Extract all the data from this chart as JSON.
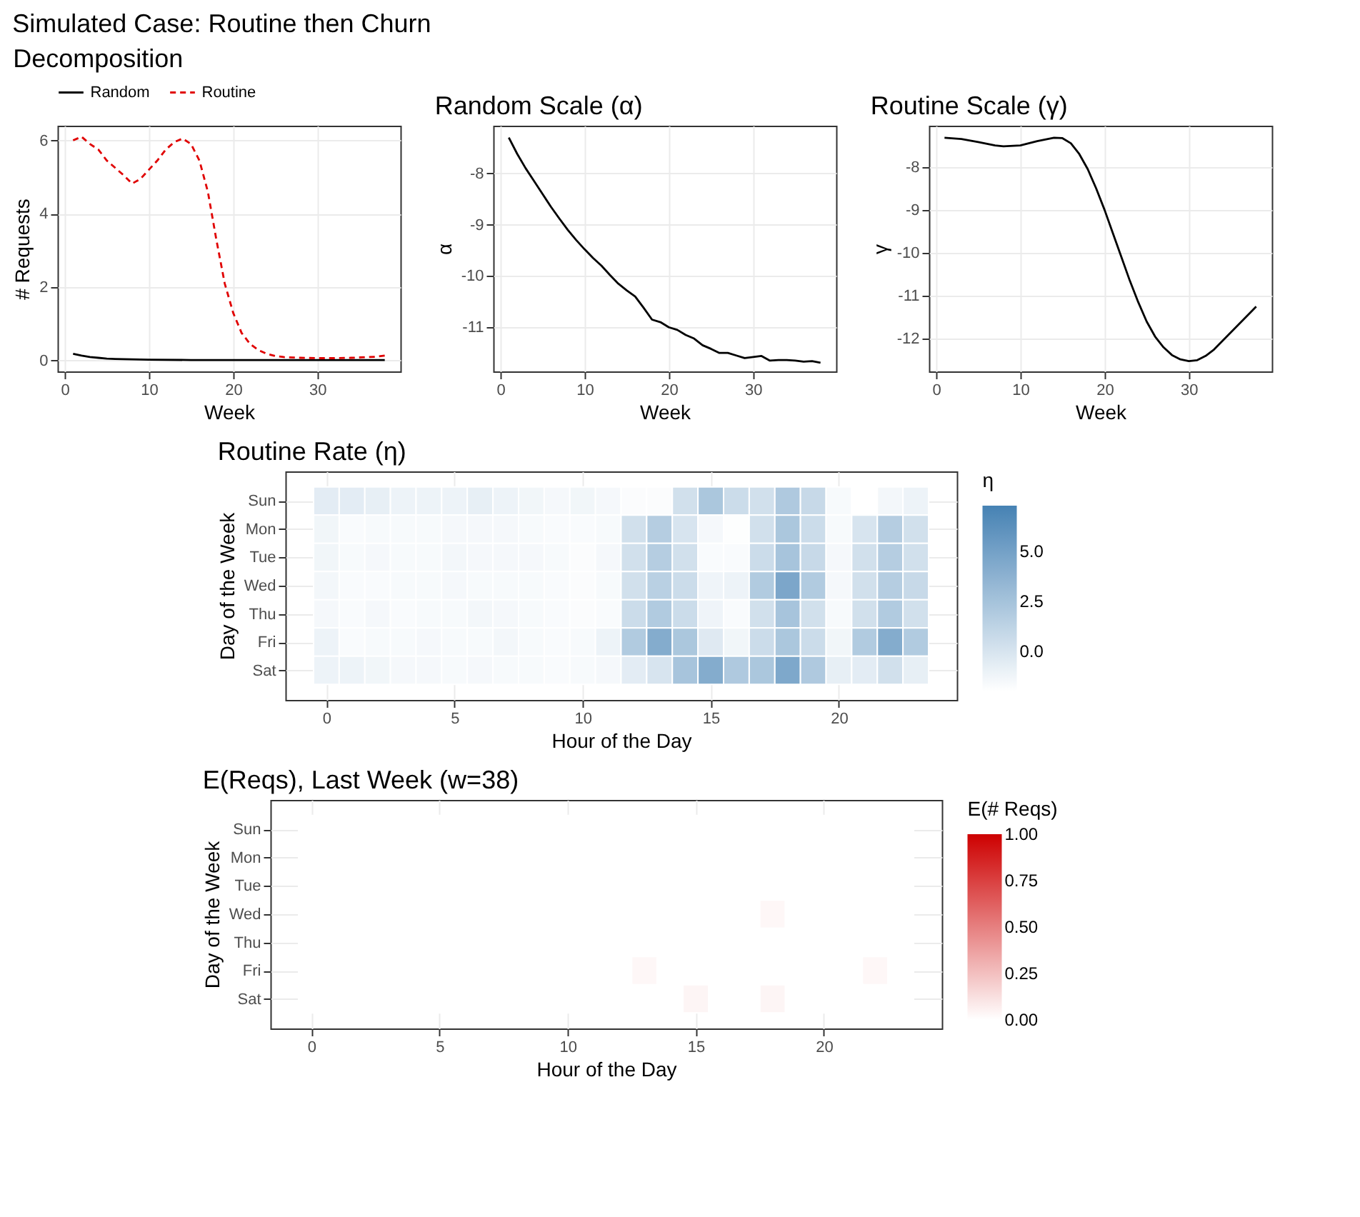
{
  "chart_data": [
    {
      "type": "line",
      "title": "Decomposition",
      "annotations": [
        "Simulated Case: Routine then Churn"
      ],
      "xlabel": "Week",
      "ylabel": "# Requests",
      "xlim": [
        -0.85,
        39.85
      ],
      "ylim": [
        -0.3,
        6.4
      ],
      "xticks": [
        0,
        10,
        20,
        30
      ],
      "yticks": [
        0,
        2,
        4,
        6
      ],
      "grid": true,
      "legend": "top",
      "series": [
        {
          "name": "Random",
          "color": "#000000",
          "line_style": "solid",
          "x": [
            1,
            2,
            3,
            4,
            5,
            6,
            8,
            10,
            15,
            20,
            25,
            30,
            38
          ],
          "values": [
            0.18,
            0.13,
            0.09,
            0.07,
            0.05,
            0.04,
            0.03,
            0.02,
            0.01,
            0.01,
            0.01,
            0.01,
            0.01
          ]
        },
        {
          "name": "Routine",
          "color": "#e00000",
          "line_style": "dashed",
          "x": [
            1,
            2,
            3,
            4,
            5,
            6,
            7,
            8,
            9,
            10,
            11,
            12,
            13,
            14,
            15,
            16,
            17,
            18,
            19,
            20,
            21,
            22,
            23,
            24,
            25,
            26,
            28,
            30,
            32,
            34,
            36,
            37,
            38
          ],
          "values": [
            6.0,
            6.1,
            5.9,
            5.75,
            5.45,
            5.25,
            5.05,
            4.82,
            4.95,
            5.2,
            5.45,
            5.75,
            5.95,
            6.05,
            5.9,
            5.45,
            4.6,
            3.3,
            2.1,
            1.3,
            0.75,
            0.45,
            0.28,
            0.18,
            0.12,
            0.09,
            0.07,
            0.06,
            0.06,
            0.07,
            0.09,
            0.1,
            0.13
          ]
        }
      ]
    },
    {
      "type": "line",
      "title": "Random Scale (α)",
      "xlabel": "Week",
      "ylabel": "α",
      "xlim": [
        -0.85,
        39.85
      ],
      "ylim": [
        -11.86,
        -7.07
      ],
      "xticks": [
        0,
        10,
        20,
        30
      ],
      "yticks": [
        -11,
        -10,
        -9,
        -8
      ],
      "grid": true,
      "series": [
        {
          "color": "#000000",
          "line_style": "solid",
          "x": [
            1,
            2,
            3,
            4,
            5,
            6,
            7,
            8,
            9,
            10,
            11,
            12,
            13,
            14,
            15,
            16,
            17,
            18,
            19,
            20,
            21,
            22,
            23,
            24,
            25,
            26,
            27,
            28,
            29,
            30,
            31,
            32,
            33,
            34,
            35,
            36,
            37,
            38
          ],
          "values": [
            -7.3,
            -7.62,
            -7.9,
            -8.15,
            -8.4,
            -8.65,
            -8.88,
            -9.1,
            -9.3,
            -9.48,
            -9.65,
            -9.8,
            -9.98,
            -10.15,
            -10.28,
            -10.4,
            -10.62,
            -10.85,
            -10.9,
            -11.0,
            -11.05,
            -11.15,
            -11.22,
            -11.35,
            -11.42,
            -11.5,
            -11.5,
            -11.55,
            -11.6,
            -11.58,
            -11.56,
            -11.65,
            -11.64,
            -11.64,
            -11.65,
            -11.67,
            -11.66,
            -11.69
          ]
        }
      ]
    },
    {
      "type": "line",
      "title": "Routine Scale (γ)",
      "xlabel": "Week",
      "ylabel": "γ",
      "xlim": [
        -0.85,
        39.85
      ],
      "ylim": [
        -12.76,
        -7.04
      ],
      "xticks": [
        0,
        10,
        20,
        30
      ],
      "yticks": [
        -12,
        -11,
        -10,
        -9,
        -8
      ],
      "grid": true,
      "series": [
        {
          "color": "#000000",
          "line_style": "solid",
          "x": [
            1,
            3,
            5,
            7,
            8,
            10,
            12,
            14,
            15,
            16,
            17,
            18,
            19,
            20,
            21,
            22,
            23,
            24,
            25,
            26,
            27,
            28,
            29,
            30,
            31,
            32,
            33,
            34,
            35,
            36,
            37,
            38
          ],
          "values": [
            -7.32,
            -7.35,
            -7.42,
            -7.5,
            -7.52,
            -7.5,
            -7.4,
            -7.32,
            -7.33,
            -7.45,
            -7.7,
            -8.05,
            -8.5,
            -9.0,
            -9.55,
            -10.1,
            -10.65,
            -11.15,
            -11.6,
            -11.95,
            -12.2,
            -12.38,
            -12.48,
            -12.52,
            -12.5,
            -12.4,
            -12.25,
            -12.05,
            -11.85,
            -11.65,
            -11.45,
            -11.25
          ]
        }
      ]
    },
    {
      "type": "heatmap",
      "title": "Routine Rate (η)",
      "xlabel": "Hour of the Day",
      "ylabel": "Day of the Week",
      "clabel": "η",
      "color": "#4682b4",
      "grid": true,
      "clim": [
        -2,
        7.3
      ],
      "cticks": [
        {
          "value": 0,
          "label": "0.0"
        },
        {
          "value": 2.5,
          "label": "2.5"
        },
        {
          "value": 5,
          "label": "5.0"
        }
      ],
      "categories": [
        "0",
        null,
        null,
        null,
        null,
        "5",
        null,
        null,
        null,
        null,
        "10",
        null,
        null,
        null,
        null,
        "15",
        null,
        null,
        null,
        null,
        "20",
        null,
        null,
        null
      ],
      "y_categories": [
        "Sun",
        "Mon",
        "Tue",
        "Wed",
        "Thu",
        "Fri",
        "Sat"
      ],
      "cells": [
        [
          -0.6,
          -0.6,
          -0.8,
          -1.1,
          -1.1,
          -1.1,
          -0.8,
          -1.1,
          -1.3,
          -1.5,
          -1.3,
          -1.5,
          -1.8,
          -1.8,
          0.3,
          2.2,
          0.6,
          0.3,
          2.0,
          0.8,
          -1.6,
          -2.0,
          -1.4,
          -1.1
        ],
        [
          -1.3,
          -1.7,
          -1.6,
          -1.6,
          -1.6,
          -1.5,
          -1.5,
          -1.5,
          -1.6,
          -1.7,
          -1.7,
          -1.6,
          0.3,
          1.7,
          0.0,
          -1.5,
          -1.9,
          0.3,
          2.2,
          0.6,
          -1.6,
          0.0,
          1.7,
          0.3
        ],
        [
          -1.3,
          -1.6,
          -1.5,
          -1.6,
          -1.6,
          -1.4,
          -1.5,
          -1.5,
          -1.5,
          -1.6,
          -1.8,
          -1.5,
          0.3,
          1.7,
          0.3,
          -1.7,
          -1.7,
          0.6,
          2.4,
          0.8,
          -1.5,
          0.3,
          1.7,
          0.3
        ],
        [
          -1.4,
          -1.7,
          -1.7,
          -1.6,
          -1.6,
          -1.5,
          -1.6,
          -1.6,
          -1.6,
          -1.7,
          -1.8,
          -1.6,
          0.3,
          1.5,
          0.6,
          -1.2,
          -1.1,
          1.9,
          4.6,
          1.9,
          -1.5,
          0.3,
          1.7,
          0.8
        ],
        [
          -1.5,
          -1.7,
          -1.5,
          -1.7,
          -1.6,
          -1.6,
          -1.4,
          -1.5,
          -1.6,
          -1.7,
          -1.8,
          -1.7,
          0.6,
          1.9,
          0.6,
          -1.2,
          -1.7,
          0.3,
          2.4,
          0.3,
          -1.6,
          0.3,
          1.9,
          0.3
        ],
        [
          -1.1,
          -1.7,
          -1.6,
          -1.6,
          -1.5,
          -1.6,
          -1.6,
          -1.4,
          -1.6,
          -1.7,
          -1.6,
          -1.1,
          1.9,
          4.2,
          2.2,
          -0.4,
          -1.3,
          0.6,
          2.2,
          0.6,
          -1.3,
          1.9,
          4.2,
          1.9
        ],
        [
          -1.1,
          -1.1,
          -1.3,
          -1.5,
          -1.5,
          -1.6,
          -1.5,
          -1.6,
          -1.6,
          -1.7,
          -1.6,
          -1.5,
          -0.6,
          0.0,
          2.4,
          4.2,
          2.0,
          2.2,
          4.5,
          2.0,
          -0.8,
          -0.6,
          0.3,
          -0.8
        ]
      ]
    },
    {
      "type": "heatmap",
      "title": "E(Reqs), Last Week (w=38)",
      "xlabel": "Hour of the Day",
      "ylabel": "Day of the Week",
      "clabel": "E(# Reqs)",
      "color": "#cd0000",
      "grid": true,
      "clim": [
        0,
        1
      ],
      "cticks": [
        {
          "value": 0,
          "label": "0.00"
        },
        {
          "value": 0.25,
          "label": "0.25"
        },
        {
          "value": 0.5,
          "label": "0.50"
        },
        {
          "value": 0.75,
          "label": "0.75"
        },
        {
          "value": 1,
          "label": "1.00"
        }
      ],
      "categories": [
        "0",
        null,
        null,
        null,
        null,
        "5",
        null,
        null,
        null,
        null,
        "10",
        null,
        null,
        null,
        null,
        "15",
        null,
        null,
        null,
        null,
        "20",
        null,
        null,
        null
      ],
      "y_categories": [
        "Sun",
        "Mon",
        "Tue",
        "Wed",
        "Thu",
        "Fri",
        "Sat"
      ],
      "cells": [
        [
          0,
          0,
          0,
          0,
          0,
          0,
          0,
          0,
          0,
          0,
          0,
          0,
          0,
          0,
          0,
          0,
          0,
          0,
          0,
          0,
          0,
          0,
          0,
          0
        ],
        [
          0,
          0,
          0,
          0,
          0,
          0,
          0,
          0,
          0,
          0,
          0,
          0,
          0,
          0,
          0,
          0,
          0,
          0,
          0,
          0,
          0,
          0,
          0,
          0
        ],
        [
          0,
          0,
          0,
          0,
          0,
          0,
          0,
          0,
          0,
          0,
          0,
          0,
          0,
          0,
          0,
          0,
          0,
          0,
          0,
          0,
          0,
          0,
          0,
          0
        ],
        [
          0,
          0,
          0,
          0,
          0,
          0,
          0,
          0,
          0,
          0,
          0,
          0,
          0,
          0,
          0,
          0,
          0,
          0,
          0.03,
          0,
          0,
          0,
          0,
          0
        ],
        [
          0,
          0,
          0,
          0,
          0,
          0,
          0,
          0,
          0,
          0,
          0,
          0,
          0,
          0,
          0,
          0,
          0,
          0,
          0,
          0,
          0,
          0,
          0,
          0
        ],
        [
          0,
          0,
          0,
          0,
          0,
          0,
          0,
          0,
          0,
          0,
          0,
          0,
          0,
          0.03,
          0,
          0,
          0,
          0,
          0,
          0,
          0,
          0,
          0.03,
          0
        ],
        [
          0,
          0,
          0,
          0,
          0,
          0,
          0,
          0,
          0,
          0,
          0,
          0,
          0,
          0,
          0,
          0.04,
          0,
          0,
          0.04,
          0,
          0,
          0,
          0,
          0
        ]
      ]
    }
  ]
}
